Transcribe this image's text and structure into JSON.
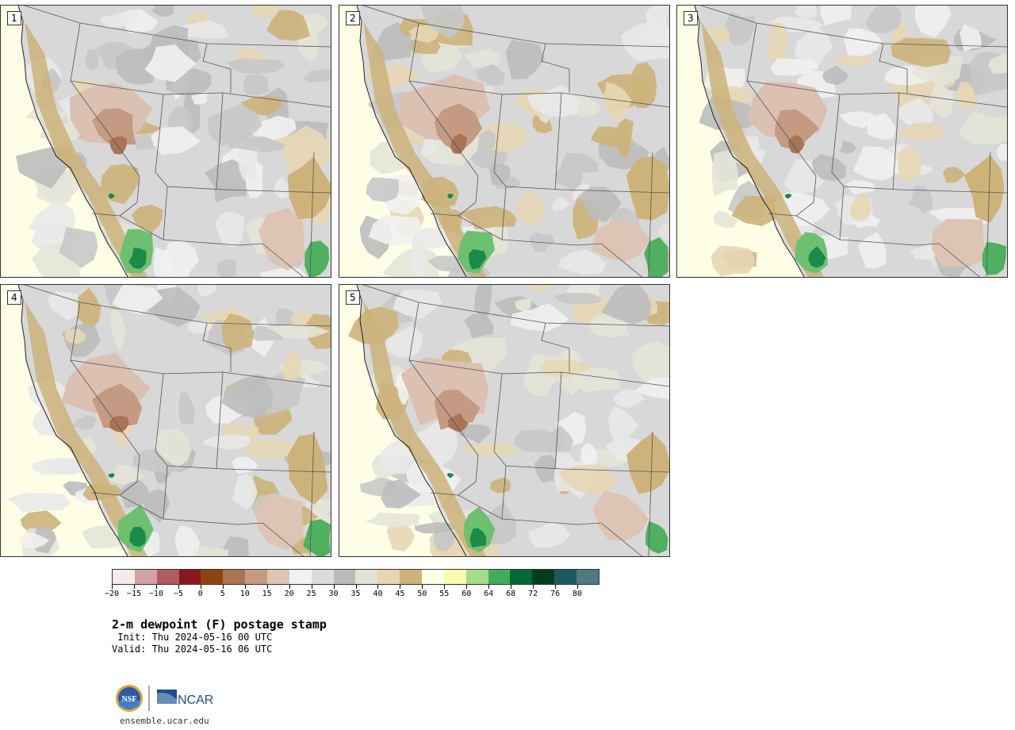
{
  "stamps": [
    {
      "label": "1"
    },
    {
      "label": "2"
    },
    {
      "label": "3"
    },
    {
      "label": "4"
    },
    {
      "label": "5"
    }
  ],
  "colorbar": {
    "colors": [
      "#f4ecec",
      "#d2a0a4",
      "#b05c60",
      "#8a1620",
      "#8c4510",
      "#a97450",
      "#c49a80",
      "#dec4b4",
      "#f1f1f1",
      "#dcdcdc",
      "#bababa",
      "#e2e2d6",
      "#e6d6b2",
      "#cdb37a",
      "#fefee8",
      "#f8faae",
      "#a4dc8a",
      "#42ac5a",
      "#006a36",
      "#003c1e",
      "#1c5a60",
      "#4e7a80"
    ],
    "tick_labels": [
      "−20",
      "−15",
      "−10",
      "−5",
      "0",
      "5",
      "10",
      "15",
      "20",
      "25",
      "30",
      "35",
      "40",
      "45",
      "50",
      "55",
      "60",
      "64",
      "68",
      "72",
      "76",
      "80"
    ]
  },
  "title": "2-m dewpoint (F) postage stamp",
  "init": " Init: Thu 2024-05-16 00 UTC",
  "valid": "Valid: Thu 2024-05-16 06 UTC",
  "footer": {
    "nsf_text": "NSF",
    "ncar_text": "NCAR",
    "url": "ensemble.ucar.edu"
  }
}
